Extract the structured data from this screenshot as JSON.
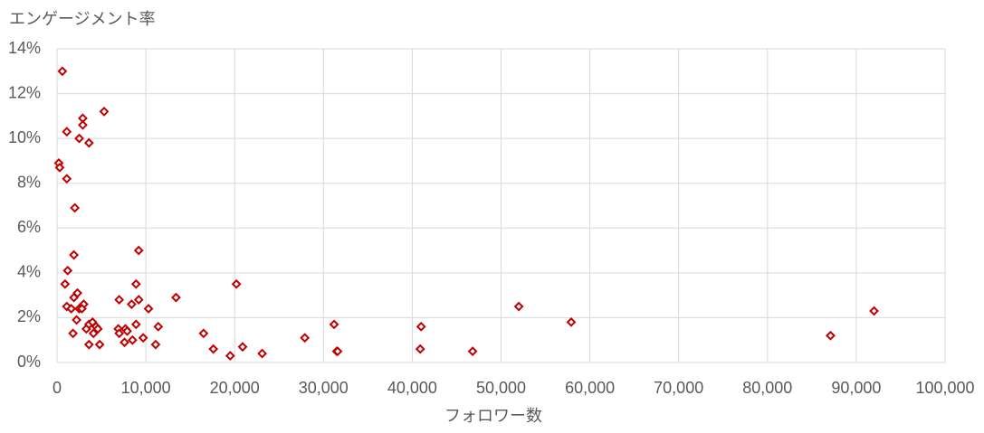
{
  "chart_data": {
    "type": "scatter",
    "y_label": "エンゲージメント率",
    "x_label": "フォロワー数",
    "color": "#c00000",
    "grid": true,
    "x": [
      600,
      1100,
      200,
      300,
      1100,
      2000,
      2900,
      2900,
      2500,
      3600,
      5300,
      1900,
      1200,
      900,
      2300,
      1900,
      1100,
      1600,
      3000,
      2500,
      2800,
      2200,
      1800,
      3300,
      3600,
      4000,
      4400,
      4600,
      4100,
      3600,
      4800,
      7000,
      9200,
      8900,
      9200,
      8400,
      10300,
      13400,
      6900,
      7700,
      7000,
      7900,
      8900,
      11400,
      7600,
      8500,
      9700,
      11100,
      20200,
      16500,
      17600,
      20900,
      19500,
      23100,
      27900,
      31200,
      31500,
      31600,
      41000,
      40900,
      46800,
      52000,
      57900,
      87100,
      92000
    ],
    "values": [
      13.0,
      10.3,
      8.9,
      8.7,
      8.2,
      6.9,
      10.9,
      10.6,
      10.0,
      9.8,
      11.2,
      4.8,
      4.1,
      3.5,
      3.1,
      2.9,
      2.5,
      2.4,
      2.6,
      2.4,
      2.4,
      1.9,
      1.3,
      1.5,
      1.7,
      1.8,
      1.6,
      1.5,
      1.3,
      0.8,
      0.8,
      2.8,
      5.0,
      3.5,
      2.8,
      2.6,
      2.4,
      2.9,
      1.5,
      1.5,
      1.3,
      1.4,
      1.7,
      1.6,
      0.9,
      1.0,
      1.1,
      0.8,
      3.5,
      1.3,
      0.6,
      0.7,
      0.3,
      0.4,
      1.1,
      1.7,
      0.5,
      0.5,
      1.6,
      0.6,
      0.5,
      2.5,
      1.8,
      1.2,
      2.3
    ],
    "xlim": [
      0,
      100000
    ],
    "ylim": [
      0,
      14
    ],
    "xticks": [
      0,
      {
        "value": 10000,
        "label": "10,000"
      },
      {
        "value": 20000,
        "label": "20,000"
      },
      {
        "value": 30000,
        "label": "30,000"
      },
      {
        "value": 40000,
        "label": "40,000"
      },
      {
        "value": 50000,
        "label": "50,000"
      },
      {
        "value": 60000,
        "label": "60,000"
      },
      {
        "value": 70000,
        "label": "70,000"
      },
      {
        "value": 80000,
        "label": "80,000"
      },
      {
        "value": 90000,
        "label": "90,000"
      },
      {
        "value": 100000,
        "label": "100,000"
      }
    ],
    "yticks": [
      {
        "value": 0,
        "label": "0%"
      },
      {
        "value": 2,
        "label": "2%"
      },
      {
        "value": 4,
        "label": "4%"
      },
      {
        "value": 6,
        "label": "6%"
      },
      {
        "value": 8,
        "label": "8%"
      },
      {
        "value": 10,
        "label": "10%"
      },
      {
        "value": 12,
        "label": "12%"
      },
      {
        "value": 14,
        "label": "14%"
      }
    ]
  }
}
